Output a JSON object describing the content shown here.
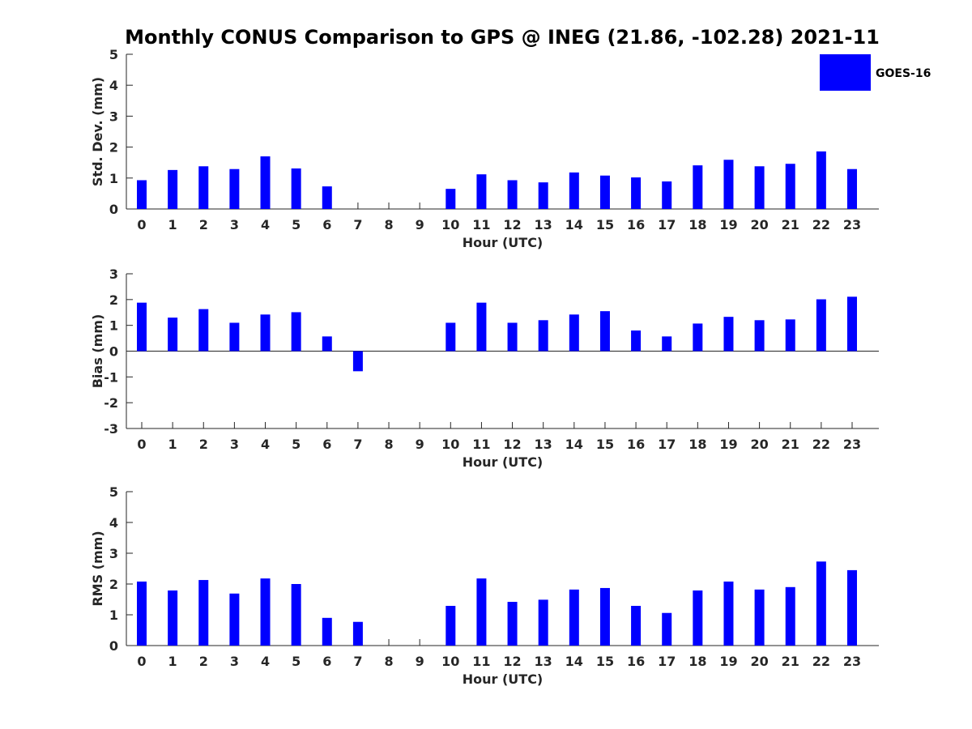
{
  "title": "Monthly CONUS Comparison to GPS @ INEG (21.86, -102.28) 2021-11",
  "legend": {
    "label": "GOES-16",
    "color": "#0000ff"
  },
  "chart_data": [
    {
      "type": "bar",
      "ylabel": "Std. Dev. (mm)",
      "xlabel": "Hour (UTC)",
      "ylim": [
        0,
        5
      ],
      "yticks": [
        0,
        1,
        2,
        3,
        4,
        5
      ],
      "categories": [
        0,
        1,
        2,
        3,
        4,
        5,
        6,
        7,
        8,
        9,
        10,
        11,
        12,
        13,
        14,
        15,
        16,
        17,
        18,
        19,
        20,
        21,
        22,
        23
      ],
      "series": [
        {
          "name": "GOES-16",
          "values": [
            0.93,
            1.26,
            1.38,
            1.29,
            1.7,
            1.31,
            0.73,
            null,
            null,
            null,
            0.65,
            1.12,
            0.93,
            0.86,
            1.18,
            1.08,
            1.02,
            0.89,
            1.41,
            1.59,
            1.38,
            1.46,
            1.86,
            1.29
          ]
        }
      ]
    },
    {
      "type": "bar",
      "ylabel": "Bias (mm)",
      "xlabel": "Hour (UTC)",
      "ylim": [
        -3,
        3
      ],
      "yticks": [
        -3,
        -2,
        -1,
        0,
        1,
        2,
        3
      ],
      "categories": [
        0,
        1,
        2,
        3,
        4,
        5,
        6,
        7,
        8,
        9,
        10,
        11,
        12,
        13,
        14,
        15,
        16,
        17,
        18,
        19,
        20,
        21,
        22,
        23
      ],
      "series": [
        {
          "name": "GOES-16",
          "values": [
            1.88,
            1.3,
            1.63,
            1.1,
            1.42,
            1.51,
            0.57,
            -0.78,
            null,
            null,
            1.1,
            1.88,
            1.1,
            1.2,
            1.42,
            1.55,
            0.8,
            0.57,
            1.07,
            1.33,
            1.2,
            1.23,
            2.01,
            2.11
          ]
        }
      ]
    },
    {
      "type": "bar",
      "ylabel": "RMS (mm)",
      "xlabel": "Hour (UTC)",
      "ylim": [
        0,
        5
      ],
      "yticks": [
        0,
        1,
        2,
        3,
        4,
        5
      ],
      "categories": [
        0,
        1,
        2,
        3,
        4,
        5,
        6,
        7,
        8,
        9,
        10,
        11,
        12,
        13,
        14,
        15,
        16,
        17,
        18,
        19,
        20,
        21,
        22,
        23
      ],
      "series": [
        {
          "name": "GOES-16",
          "values": [
            2.08,
            1.79,
            2.13,
            1.69,
            2.18,
            2.0,
            0.9,
            0.77,
            null,
            null,
            1.29,
            2.18,
            1.42,
            1.49,
            1.82,
            1.87,
            1.29,
            1.06,
            1.79,
            2.08,
            1.82,
            1.9,
            2.73,
            2.45
          ]
        }
      ]
    }
  ]
}
